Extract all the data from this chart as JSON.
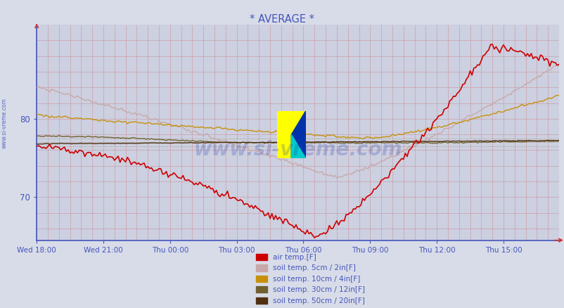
{
  "title": "* AVERAGE *",
  "title_color": "#4455bb",
  "bg_color": "#d8dce8",
  "plot_bg_color": "#ccd0e0",
  "grid_major_color": "#cc3333",
  "grid_minor_color": "#cc9999",
  "grid_dotted_color": "#888855",
  "axis_color": "#4455bb",
  "tick_color": "#4455bb",
  "watermark": "www.si-vreme.com",
  "watermark_color": "#2233aa",
  "watermark_alpha": 0.22,
  "sidebar_text": "www.si-vreme.com",
  "sidebar_color": "#4455bb",
  "ylim": [
    64.5,
    92.0
  ],
  "yticks": [
    70,
    80
  ],
  "xlim": [
    0,
    23.5
  ],
  "xtick_positions": [
    0,
    3,
    6,
    9,
    12,
    15,
    18,
    21
  ],
  "xtick_labels": [
    "Wed 18:00",
    "Wed 21:00",
    "Thu 00:00",
    "Thu 03:00",
    "Thu 06:00",
    "Thu 09:00",
    "Thu 12:00",
    "Thu 15:00"
  ],
  "legend_color": "#4455bb",
  "series": {
    "air_temp": {
      "color": "#cc0000",
      "label": "air temp.[F]",
      "lw": 1.2
    },
    "soil_5cm": {
      "color": "#c8a8a8",
      "label": "soil temp. 5cm / 2in[F]",
      "lw": 1.0
    },
    "soil_10cm": {
      "color": "#c8900a",
      "label": "soil temp. 10cm / 4in[F]",
      "lw": 1.0
    },
    "soil_30cm": {
      "color": "#706030",
      "label": "soil temp. 30cm / 12in[F]",
      "lw": 1.0
    },
    "soil_50cm": {
      "color": "#503010",
      "label": "soil temp. 50cm / 20in[F]",
      "lw": 1.0
    }
  },
  "icon": {
    "yellow": "#ffff00",
    "cyan": "#00cccc",
    "blue": "#0033aa"
  }
}
